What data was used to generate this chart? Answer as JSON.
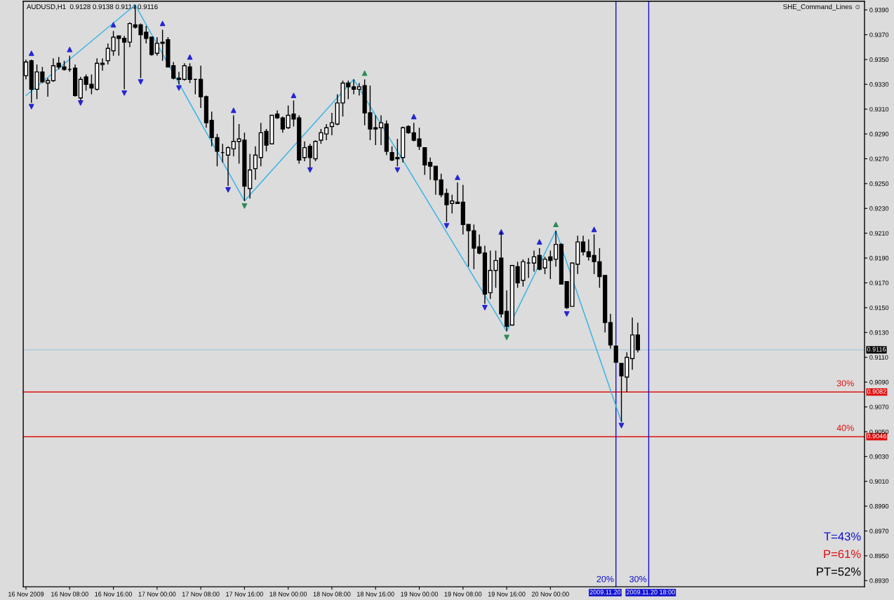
{
  "chart_data": {
    "type": "candlestick",
    "title": "AUDUSD,H1  0.9128 0.9138 0.9114 0.9116",
    "subtitle": "SHE_Command_Lines ☺",
    "x": [
      "2009-11-16T00:00",
      "2009-11-16T01:00",
      "2009-11-16T02:00",
      "2009-11-16T03:00",
      "2009-11-16T04:00",
      "2009-11-16T05:00",
      "2009-11-16T06:00",
      "2009-11-16T07:00",
      "2009-11-16T08:00",
      "2009-11-16T09:00",
      "2009-11-16T10:00",
      "2009-11-16T11:00",
      "2009-11-16T12:00",
      "2009-11-16T13:00",
      "2009-11-16T14:00",
      "2009-11-16T15:00",
      "2009-11-16T16:00",
      "2009-11-16T17:00",
      "2009-11-16T18:00",
      "2009-11-16T19:00",
      "2009-11-16T20:00",
      "2009-11-16T21:00",
      "2009-11-16T22:00",
      "2009-11-16T23:00",
      "2009-11-17T00:00",
      "2009-11-17T01:00",
      "2009-11-17T02:00",
      "2009-11-17T03:00",
      "2009-11-17T04:00",
      "2009-11-17T05:00",
      "2009-11-17T06:00",
      "2009-11-17T07:00",
      "2009-11-17T08:00",
      "2009-11-17T09:00",
      "2009-11-17T10:00",
      "2009-11-17T11:00",
      "2009-11-17T12:00",
      "2009-11-17T13:00",
      "2009-11-17T14:00",
      "2009-11-17T15:00",
      "2009-11-17T16:00",
      "2009-11-17T17:00",
      "2009-11-17T18:00",
      "2009-11-17T19:00",
      "2009-11-17T20:00",
      "2009-11-17T21:00",
      "2009-11-17T22:00",
      "2009-11-17T23:00",
      "2009-11-18T00:00",
      "2009-11-18T01:00",
      "2009-11-18T02:00",
      "2009-11-18T03:00",
      "2009-11-18T04:00",
      "2009-11-18T05:00",
      "2009-11-18T06:00",
      "2009-11-18T07:00",
      "2009-11-18T08:00",
      "2009-11-18T09:00",
      "2009-11-18T10:00",
      "2009-11-18T11:00",
      "2009-11-18T12:00",
      "2009-11-18T13:00",
      "2009-11-18T14:00",
      "2009-11-18T15:00",
      "2009-11-18T16:00",
      "2009-11-18T17:00",
      "2009-11-18T18:00",
      "2009-11-18T19:00",
      "2009-11-18T20:00",
      "2009-11-18T21:00",
      "2009-11-18T22:00",
      "2009-11-18T23:00",
      "2009-11-19T00:00",
      "2009-11-19T01:00",
      "2009-11-19T02:00",
      "2009-11-19T03:00",
      "2009-11-19T04:00",
      "2009-11-19T05:00",
      "2009-11-19T06:00",
      "2009-11-19T07:00",
      "2009-11-19T08:00",
      "2009-11-19T09:00",
      "2009-11-19T10:00",
      "2009-11-19T11:00",
      "2009-11-19T12:00",
      "2009-11-19T13:00",
      "2009-11-19T14:00",
      "2009-11-19T15:00",
      "2009-11-19T16:00",
      "2009-11-19T17:00",
      "2009-11-19T18:00",
      "2009-11-19T19:00",
      "2009-11-19T20:00",
      "2009-11-19T21:00",
      "2009-11-19T22:00",
      "2009-11-19T23:00",
      "2009-11-20T00:00",
      "2009-11-20T01:00",
      "2009-11-20T02:00",
      "2009-11-20T03:00",
      "2009-11-20T04:00",
      "2009-11-20T05:00",
      "2009-11-20T06:00",
      "2009-11-20T07:00",
      "2009-11-20T08:00",
      "2009-11-20T09:00",
      "2009-11-20T10:00",
      "2009-11-20T11:00",
      "2009-11-20T12:00",
      "2009-11-20T13:00",
      "2009-11-20T14:00",
      "2009-11-20T15:00",
      "2009-11-20T16:00"
    ],
    "ohlc": [
      [
        0.9337,
        0.935,
        0.9334,
        0.9348
      ],
      [
        0.9349,
        0.935,
        0.9315,
        0.9326
      ],
      [
        0.9326,
        0.9346,
        0.9318,
        0.934
      ],
      [
        0.934,
        0.9344,
        0.9331,
        0.9332
      ],
      [
        0.9331,
        0.9335,
        0.932,
        0.9333
      ],
      [
        0.9333,
        0.9351,
        0.9332,
        0.9345
      ],
      [
        0.9347,
        0.9352,
        0.9342,
        0.9344
      ],
      [
        0.9344,
        0.9349,
        0.9341,
        0.9342
      ],
      [
        0.9342,
        0.9353,
        0.934,
        0.9342
      ],
      [
        0.9343,
        0.9346,
        0.932,
        0.9321
      ],
      [
        0.9319,
        0.9336,
        0.9317,
        0.9334
      ],
      [
        0.9336,
        0.9338,
        0.9325,
        0.933
      ],
      [
        0.933,
        0.9338,
        0.9322,
        0.9327
      ],
      [
        0.9326,
        0.9351,
        0.9325,
        0.9347
      ],
      [
        0.9346,
        0.9351,
        0.9341,
        0.9347
      ],
      [
        0.9349,
        0.9363,
        0.9346,
        0.9359
      ],
      [
        0.9357,
        0.9373,
        0.9353,
        0.9368
      ],
      [
        0.9369,
        0.9369,
        0.9353,
        0.9367
      ],
      [
        0.9367,
        0.9369,
        0.9326,
        0.9364
      ],
      [
        0.9364,
        0.938,
        0.936,
        0.9379
      ],
      [
        0.9378,
        0.9394,
        0.9375,
        0.9376
      ],
      [
        0.9378,
        0.9379,
        0.9335,
        0.937
      ],
      [
        0.9372,
        0.9377,
        0.9363,
        0.9367
      ],
      [
        0.9368,
        0.9368,
        0.9353,
        0.9354
      ],
      [
        0.9355,
        0.9368,
        0.9353,
        0.9363
      ],
      [
        0.9364,
        0.9374,
        0.9349,
        0.9363
      ],
      [
        0.9366,
        0.9368,
        0.9344,
        0.9344
      ],
      [
        0.9345,
        0.9348,
        0.9334,
        0.9335
      ],
      [
        0.9335,
        0.934,
        0.933,
        0.9334
      ],
      [
        0.9334,
        0.9347,
        0.9333,
        0.9345
      ],
      [
        0.9344,
        0.9347,
        0.9331,
        0.9334
      ],
      [
        0.9334,
        0.9334,
        0.9322,
        0.9334
      ],
      [
        0.9334,
        0.9345,
        0.9311,
        0.932
      ],
      [
        0.932,
        0.9321,
        0.9295,
        0.9299
      ],
      [
        0.9301,
        0.9308,
        0.928,
        0.9287
      ],
      [
        0.9287,
        0.929,
        0.9264,
        0.9276
      ],
      [
        0.9275,
        0.9282,
        0.9267,
        0.9275
      ],
      [
        0.9273,
        0.928,
        0.9248,
        0.9279
      ],
      [
        0.9278,
        0.9305,
        0.9272,
        0.9284
      ],
      [
        0.9284,
        0.9298,
        0.9266,
        0.9286
      ],
      [
        0.9285,
        0.9291,
        0.9236,
        0.9248
      ],
      [
        0.9246,
        0.9274,
        0.9238,
        0.9261
      ],
      [
        0.9262,
        0.928,
        0.9253,
        0.9273
      ],
      [
        0.9271,
        0.9299,
        0.9264,
        0.9291
      ],
      [
        0.9292,
        0.9294,
        0.9276,
        0.9281
      ],
      [
        0.9282,
        0.9305,
        0.9282,
        0.9305
      ],
      [
        0.9306,
        0.9309,
        0.9302,
        0.9303
      ],
      [
        0.9303,
        0.9304,
        0.9291,
        0.9294
      ],
      [
        0.9295,
        0.9313,
        0.9294,
        0.9305
      ],
      [
        0.9306,
        0.9317,
        0.9296,
        0.9302
      ],
      [
        0.9303,
        0.9305,
        0.9266,
        0.9269
      ],
      [
        0.9271,
        0.9284,
        0.9268,
        0.9279
      ],
      [
        0.928,
        0.9282,
        0.9263,
        0.9271
      ],
      [
        0.927,
        0.9285,
        0.9268,
        0.9284
      ],
      [
        0.9285,
        0.9294,
        0.9282,
        0.9291
      ],
      [
        0.929,
        0.9298,
        0.9285,
        0.9295
      ],
      [
        0.9296,
        0.9307,
        0.9289,
        0.9299
      ],
      [
        0.9298,
        0.9322,
        0.9297,
        0.9315
      ],
      [
        0.9315,
        0.9333,
        0.9304,
        0.9331
      ],
      [
        0.9331,
        0.9333,
        0.9318,
        0.9328
      ],
      [
        0.9328,
        0.9334,
        0.9322,
        0.9326
      ],
      [
        0.9326,
        0.9331,
        0.9321,
        0.9328
      ],
      [
        0.9329,
        0.9334,
        0.9297,
        0.9307
      ],
      [
        0.9307,
        0.9329,
        0.9285,
        0.9294
      ],
      [
        0.9295,
        0.9305,
        0.9281,
        0.9294
      ],
      [
        0.9295,
        0.9305,
        0.9281,
        0.9299
      ],
      [
        0.9298,
        0.9301,
        0.9273,
        0.9276
      ],
      [
        0.9275,
        0.928,
        0.9268,
        0.9269
      ],
      [
        0.9271,
        0.9286,
        0.9264,
        0.927
      ],
      [
        0.9271,
        0.9296,
        0.9267,
        0.9295
      ],
      [
        0.9296,
        0.9297,
        0.929,
        0.9291
      ],
      [
        0.9291,
        0.9299,
        0.9284,
        0.9285
      ],
      [
        0.9286,
        0.9295,
        0.9277,
        0.928
      ],
      [
        0.9279,
        0.9279,
        0.9257,
        0.9265
      ],
      [
        0.9267,
        0.9271,
        0.9253,
        0.9264
      ],
      [
        0.9264,
        0.9264,
        0.9241,
        0.9253
      ],
      [
        0.9253,
        0.9258,
        0.9239,
        0.9241
      ],
      [
        0.9242,
        0.9246,
        0.9219,
        0.9233
      ],
      [
        0.9234,
        0.9241,
        0.9226,
        0.9236
      ],
      [
        0.9235,
        0.9251,
        0.9234,
        0.9234
      ],
      [
        0.9235,
        0.9249,
        0.9209,
        0.9217
      ],
      [
        0.9217,
        0.9217,
        0.9183,
        0.9212
      ],
      [
        0.9212,
        0.9217,
        0.9181,
        0.9198
      ],
      [
        0.9199,
        0.9209,
        0.9193,
        0.9194
      ],
      [
        0.9194,
        0.92,
        0.9153,
        0.9161
      ],
      [
        0.9162,
        0.9196,
        0.9157,
        0.918
      ],
      [
        0.918,
        0.9196,
        0.9166,
        0.9188
      ],
      [
        0.919,
        0.9211,
        0.9142,
        0.9145
      ],
      [
        0.9147,
        0.9164,
        0.9131,
        0.9135
      ],
      [
        0.9136,
        0.9184,
        0.9136,
        0.9184
      ],
      [
        0.9183,
        0.9187,
        0.9166,
        0.917
      ],
      [
        0.9172,
        0.9189,
        0.9167,
        0.9187
      ],
      [
        0.9186,
        0.919,
        0.9174,
        0.9186
      ],
      [
        0.9186,
        0.9196,
        0.9179,
        0.9191
      ],
      [
        0.9192,
        0.9198,
        0.918,
        0.9181
      ],
      [
        0.9182,
        0.9191,
        0.9177,
        0.9189
      ],
      [
        0.9191,
        0.9196,
        0.9173,
        0.9188
      ],
      [
        0.9189,
        0.9212,
        0.9183,
        0.9201
      ],
      [
        0.9201,
        0.9202,
        0.9169,
        0.9169
      ],
      [
        0.9171,
        0.9171,
        0.9149,
        0.915
      ],
      [
        0.9151,
        0.9186,
        0.9151,
        0.9186
      ],
      [
        0.9185,
        0.9208,
        0.9177,
        0.9203
      ],
      [
        0.9203,
        0.9208,
        0.9192,
        0.9195
      ],
      [
        0.9195,
        0.9205,
        0.9188,
        0.9191
      ],
      [
        0.9192,
        0.9209,
        0.9177,
        0.9187
      ],
      [
        0.9187,
        0.9198,
        0.9166,
        0.9175
      ],
      [
        0.9176,
        0.9176,
        0.913,
        0.9138
      ],
      [
        0.9138,
        0.9145,
        0.9117,
        0.912
      ],
      [
        0.9119,
        0.9119,
        0.9106,
        0.9106
      ],
      [
        0.9105,
        0.9105,
        0.9058,
        0.9095
      ],
      [
        0.9094,
        0.9114,
        0.9082,
        0.911
      ],
      [
        0.9109,
        0.9142,
        0.91,
        0.9128
      ],
      [
        0.9128,
        0.9138,
        0.9114,
        0.9116
      ]
    ],
    "series": [
      {
        "type": "line",
        "color": "#3cb4e6",
        "marker": "none",
        "x": [
          "2009-11-16T00:00",
          "2009-11-16T20:00",
          "2009-11-17T16:00",
          "2009-11-18T12:00",
          "2009-11-19T16:00",
          "2009-11-20T01:00",
          "2009-11-20T13:00"
        ],
        "values": [
          0.9321,
          0.9394,
          0.9236,
          0.9334,
          0.9131,
          0.9212,
          0.9058
        ]
      },
      {
        "type": "scatter",
        "color": "#2626d4",
        "marker": "triangle",
        "x": [
          "2009-11-16T01:00",
          "2009-11-16T08:00",
          "2009-11-16T16:00",
          "2009-11-17T01:00",
          "2009-11-17T06:00",
          "2009-11-17T14:00",
          "2009-11-18T01:00",
          "2009-11-18T23:00",
          "2009-11-19T07:00",
          "2009-11-19T15:00",
          "2009-11-19T22:00",
          "2009-11-20T08:00"
        ],
        "values": [
          0.9355,
          0.9358,
          0.9378,
          0.9379,
          0.9352,
          0.9309,
          0.9321,
          0.9304,
          0.9255,
          0.9211,
          0.9203,
          0.9213
        ]
      },
      {
        "type": "scatter",
        "color": "#2626d4",
        "marker": "triangle_down",
        "x": [
          "2009-11-16T01:00",
          "2009-11-16T10:00",
          "2009-11-16T18:00",
          "2009-11-16T21:00",
          "2009-11-17T04:00",
          "2009-11-17T13:00",
          "2009-11-18T04:00",
          "2009-11-18T20:00",
          "2009-11-19T05:00",
          "2009-11-19T12:00",
          "2009-11-20T03:00",
          "2009-11-20T13:00"
        ],
        "values": [
          0.9312,
          0.9315,
          0.9323,
          0.9332,
          0.9327,
          0.9245,
          0.9261,
          0.9261,
          0.9216,
          0.915,
          0.9145,
          0.9055
        ]
      },
      {
        "type": "scatter",
        "color": "#2e8b57",
        "marker": "triangle",
        "x": [
          "2009-11-18T14:00",
          "2009-11-20T01:00"
        ],
        "values": [
          0.9339,
          0.9217
        ]
      },
      {
        "type": "scatter",
        "color": "#2e8b57",
        "marker": "triangle_down",
        "x": [
          "2009-11-17T16:00",
          "2009-11-19T16:00"
        ],
        "values": [
          0.9232,
          0.9126
        ]
      }
    ],
    "xlim": [
      "2009-11-15T23:30",
      "2009-11-22T09:30"
    ],
    "xticks": [
      {
        "value": "2009-11-16T00:00",
        "label": "16 Nov 2009"
      },
      {
        "value": "2009-11-16T08:00",
        "label": "16 Nov 08:00"
      },
      {
        "value": "2009-11-16T16:00",
        "label": "16 Nov 16:00"
      },
      {
        "value": "2009-11-17T00:00",
        "label": "17 Nov 00:00"
      },
      {
        "value": "2009-11-17T08:00",
        "label": "17 Nov 08:00"
      },
      {
        "value": "2009-11-17T16:00",
        "label": "17 Nov 16:00"
      },
      {
        "value": "2009-11-18T00:00",
        "label": "18 Nov 00:00"
      },
      {
        "value": "2009-11-18T08:00",
        "label": "18 Nov 08:00"
      },
      {
        "value": "2009-11-18T16:00",
        "label": "18 Nov 16:00"
      },
      {
        "value": "2009-11-19T00:00",
        "label": "19 Nov 00:00"
      },
      {
        "value": "2009-11-19T08:00",
        "label": "19 Nov 08:00"
      },
      {
        "value": "2009-11-19T16:00",
        "label": "19 Nov 16:00"
      },
      {
        "value": "2009-11-20T00:00",
        "label": "20 Nov 00:00"
      }
    ],
    "ylim": [
      0.8925,
      0.9397
    ],
    "yticks": [
      {
        "value": 0.893,
        "label": "0.8930"
      },
      {
        "value": 0.895,
        "label": "0.8950"
      },
      {
        "value": 0.897,
        "label": "0.8970"
      },
      {
        "value": 0.899,
        "label": "0.8990"
      },
      {
        "value": 0.901,
        "label": "0.9010"
      },
      {
        "value": 0.903,
        "label": "0.9030"
      },
      {
        "value": 0.905,
        "label": "0.9050"
      },
      {
        "value": 0.907,
        "label": "0.9070"
      },
      {
        "value": 0.909,
        "label": "0.9090"
      },
      {
        "value": 0.911,
        "label": "0.9110"
      },
      {
        "value": 0.913,
        "label": "0.9130"
      },
      {
        "value": 0.915,
        "label": "0.9150"
      },
      {
        "value": 0.917,
        "label": "0.9170"
      },
      {
        "value": 0.919,
        "label": "0.9190"
      },
      {
        "value": 0.921,
        "label": "0.9210"
      },
      {
        "value": 0.923,
        "label": "0.9230"
      },
      {
        "value": 0.925,
        "label": "0.9250"
      },
      {
        "value": 0.927,
        "label": "0.9270"
      },
      {
        "value": 0.929,
        "label": "0.9290"
      },
      {
        "value": 0.931,
        "label": "0.9310"
      },
      {
        "value": 0.933,
        "label": "0.9330"
      },
      {
        "value": 0.935,
        "label": "0.9350"
      },
      {
        "value": 0.937,
        "label": "0.9370"
      },
      {
        "value": 0.939,
        "label": "0.9390"
      }
    ],
    "ref_lines": [
      {
        "axis": "y",
        "value": 0.9116,
        "label": "0.9116",
        "color": "#a8c8dc"
      },
      {
        "axis": "y",
        "value": 0.9082,
        "label": "0.9082",
        "color": "#e01010"
      },
      {
        "axis": "y",
        "value": 0.9046,
        "label": "0.9046",
        "color": "#e01010"
      },
      {
        "axis": "x",
        "value": "2009-11-20T12:00",
        "label": "2009.11.20",
        "color": "#1010d0"
      },
      {
        "axis": "x",
        "value": "2009-11-20T18:00",
        "label": "2009.11.20 18:00",
        "color": "#1010d0"
      }
    ],
    "annotations": [
      "20%",
      "30%",
      "T=43%",
      "P=61%",
      "PT=52%",
      {
        "text": "30%",
        "x": "2009-11-22T06:00",
        "y": 0.9082
      },
      {
        "text": "40%",
        "x": "2009-11-22T06:00",
        "y": 0.9046
      }
    ],
    "grid": false,
    "legend": false
  }
}
